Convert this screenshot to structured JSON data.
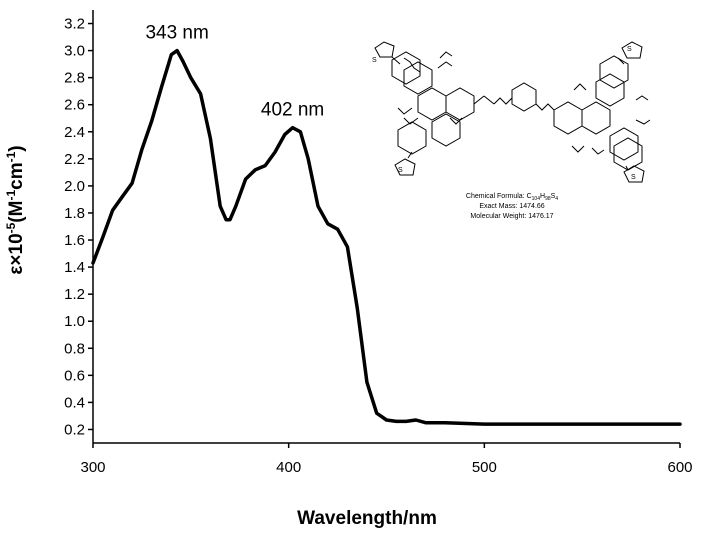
{
  "chart_data": {
    "type": "line",
    "xlabel": "Wavelength/nm",
    "ylabel_parts": {
      "pre": "ε×10",
      "exp1": "-5",
      "mid": "(M",
      "exp2": "-1",
      "mid2": "cm",
      "exp3": "-1",
      "post": ")"
    },
    "xlim": [
      300,
      600
    ],
    "ylim": [
      0.1,
      3.3
    ],
    "xticks": [
      300,
      400,
      500,
      600
    ],
    "xtick_labels": [
      "300",
      "400",
      "500",
      "600"
    ],
    "yticks": [
      0.2,
      0.4,
      0.6,
      0.8,
      1.0,
      1.2,
      1.4,
      1.6,
      1.8,
      2.0,
      2.2,
      2.4,
      2.6,
      2.8,
      3.0,
      3.2
    ],
    "ytick_labels": [
      "0.2",
      "0.4",
      "0.6",
      "0.8",
      "1.0",
      "1.2",
      "1.4",
      "1.6",
      "1.8",
      "2.0",
      "2.2",
      "2.4",
      "2.6",
      "2.8",
      "3.0",
      "3.2"
    ],
    "grid": false,
    "series": [
      {
        "color": "#000000",
        "x": [
          300,
          305,
          310,
          315,
          320,
          325,
          330,
          335,
          340,
          343,
          346,
          350,
          355,
          360,
          365,
          368,
          370,
          373,
          378,
          383,
          388,
          393,
          398,
          402,
          406,
          410,
          415,
          420,
          425,
          430,
          435,
          440,
          445,
          450,
          455,
          460,
          465,
          470,
          480,
          500,
          520,
          550,
          580,
          600
        ],
        "y": [
          1.43,
          1.62,
          1.82,
          1.92,
          2.02,
          2.27,
          2.48,
          2.73,
          2.97,
          3.0,
          2.92,
          2.8,
          2.68,
          2.35,
          1.85,
          1.75,
          1.75,
          1.85,
          2.05,
          2.12,
          2.15,
          2.25,
          2.38,
          2.43,
          2.4,
          2.2,
          1.85,
          1.72,
          1.68,
          1.55,
          1.1,
          0.55,
          0.32,
          0.27,
          0.26,
          0.26,
          0.27,
          0.25,
          0.25,
          0.24,
          0.24,
          0.24,
          0.24,
          0.24
        ]
      }
    ],
    "annotations": [
      {
        "text": "343 nm",
        "x": 343,
        "y": 3.0
      },
      {
        "text": "402 nm",
        "x": 402,
        "y": 2.43
      }
    ]
  },
  "inset": {
    "formula_label": "Chemical Formula: C",
    "formula_c": "104",
    "formula_h_letter": "H",
    "formula_h": "98",
    "formula_s_letter": "S",
    "formula_s": "4",
    "exact_mass": "Exact Mass: 1474.66",
    "molecular_weight": "Molecular Weight: 1476.17",
    "atom_s": "S"
  }
}
